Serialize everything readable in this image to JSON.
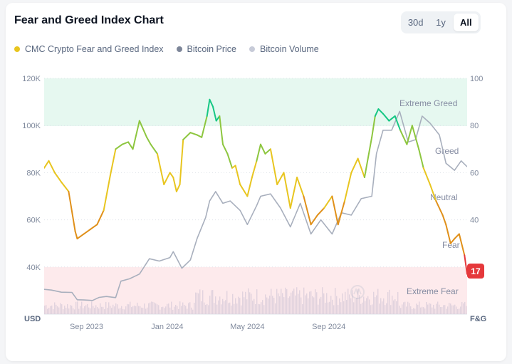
{
  "header": {
    "title": "Fear and Greed Index Chart",
    "ranges": [
      "30d",
      "1y",
      "All"
    ],
    "active_range": "All"
  },
  "legend": [
    {
      "label": "CMC Crypto Fear and Greed Index",
      "color": "#e8c51f"
    },
    {
      "label": "Bitcoin Price",
      "color": "#7d8699"
    },
    {
      "label": "Bitcoin Volume",
      "color": "#c7cbd8"
    }
  ],
  "chart_data": {
    "type": "line",
    "x_ticks": [
      "Sep 2023",
      "Jan 2024",
      "May 2024",
      "Sep 2024"
    ],
    "left_axis": {
      "label": "USD",
      "ticks": [
        "40K",
        "60K",
        "80K",
        "100K",
        "120K"
      ],
      "range": [
        20000,
        120000
      ]
    },
    "right_axis": {
      "label": "F&G",
      "ticks": [
        "40",
        "60",
        "80",
        "100"
      ],
      "range": [
        0,
        100
      ]
    },
    "zones": [
      {
        "label": "Extreme Greed",
        "from": 80,
        "to": 100,
        "color": "#e6f8f0"
      },
      {
        "label": "Greed",
        "from": 60,
        "to": 80
      },
      {
        "label": "Neutral",
        "from": 40,
        "to": 60
      },
      {
        "label": "Fear",
        "from": 20,
        "to": 40
      },
      {
        "label": "Extreme Fear",
        "from": 0,
        "to": 20,
        "color": "#fdeaec"
      }
    ],
    "current_value": "17",
    "series": [
      {
        "name": "CMC Crypto Fear and Greed Index",
        "x": [
          "2023-06-29",
          "2023-07-06",
          "2023-07-15",
          "2023-07-25",
          "2023-08-05",
          "2023-08-15",
          "2023-08-18",
          "2023-08-28",
          "2023-09-07",
          "2023-09-17",
          "2023-09-27",
          "2023-10-07",
          "2023-10-15",
          "2023-10-25",
          "2023-11-03",
          "2023-11-10",
          "2023-11-20",
          "2023-12-01",
          "2023-12-07",
          "2023-12-17",
          "2023-12-27",
          "2024-01-05",
          "2024-01-10",
          "2024-01-15",
          "2024-01-20",
          "2024-01-25",
          "2024-02-05",
          "2024-02-15",
          "2024-02-22",
          "2024-03-01",
          "2024-03-05",
          "2024-03-10",
          "2024-03-15",
          "2024-03-20",
          "2024-03-25",
          "2024-04-01",
          "2024-04-08",
          "2024-04-13",
          "2024-04-20",
          "2024-05-01",
          "2024-05-08",
          "2024-05-15",
          "2024-05-21",
          "2024-05-28",
          "2024-06-05",
          "2024-06-15",
          "2024-06-25",
          "2024-07-05",
          "2024-07-15",
          "2024-07-25",
          "2024-08-05",
          "2024-08-15",
          "2024-08-25",
          "2024-09-06",
          "2024-09-15",
          "2024-09-25",
          "2024-10-05",
          "2024-10-15",
          "2024-10-25",
          "2024-11-05",
          "2024-11-10",
          "2024-11-15",
          "2024-11-22",
          "2024-12-01",
          "2024-12-10",
          "2024-12-18",
          "2024-12-28",
          "2025-01-05",
          "2025-01-15",
          "2025-01-22",
          "2025-02-01",
          "2025-02-10",
          "2025-02-20",
          "2025-02-25",
          "2025-03-04",
          "2025-03-10",
          "2025-03-17",
          "2025-03-25",
          "2025-03-29"
        ],
        "values": [
          62,
          65,
          60,
          56,
          52,
          35,
          32,
          34,
          36,
          38,
          44,
          59,
          70,
          72,
          73,
          70,
          82,
          75,
          72,
          68,
          55,
          60,
          58,
          52,
          55,
          74,
          77,
          76,
          75,
          84,
          91,
          88,
          82,
          84,
          72,
          68,
          62,
          63,
          55,
          50,
          58,
          65,
          72,
          68,
          70,
          55,
          60,
          45,
          58,
          50,
          38,
          42,
          45,
          50,
          38,
          48,
          60,
          66,
          58,
          75,
          84,
          87,
          85,
          82,
          84,
          78,
          72,
          80,
          70,
          62,
          55,
          48,
          42,
          38,
          30,
          32,
          34,
          25,
          17
        ]
      },
      {
        "name": "Bitcoin Price",
        "x": [
          "2023-06-29",
          "2023-07-10",
          "2023-07-25",
          "2023-08-10",
          "2023-08-18",
          "2023-08-28",
          "2023-09-10",
          "2023-09-20",
          "2023-10-01",
          "2023-10-15",
          "2023-10-23",
          "2023-11-05",
          "2023-11-20",
          "2023-12-05",
          "2023-12-20",
          "2024-01-05",
          "2024-01-10",
          "2024-01-23",
          "2024-02-05",
          "2024-02-15",
          "2024-02-28",
          "2024-03-05",
          "2024-03-14",
          "2024-03-25",
          "2024-04-05",
          "2024-04-20",
          "2024-05-01",
          "2024-05-15",
          "2024-05-21",
          "2024-06-05",
          "2024-06-20",
          "2024-07-05",
          "2024-07-20",
          "2024-08-05",
          "2024-08-20",
          "2024-09-06",
          "2024-09-20",
          "2024-10-05",
          "2024-10-20",
          "2024-11-05",
          "2024-11-12",
          "2024-11-22",
          "2024-12-05",
          "2024-12-17",
          "2024-12-30",
          "2025-01-10",
          "2025-01-20",
          "2025-02-01",
          "2025-02-15",
          "2025-02-25",
          "2025-03-10",
          "2025-03-20",
          "2025-03-29"
        ],
        "values": [
          30500,
          30200,
          29300,
          29200,
          26100,
          26000,
          25800,
          27100,
          27500,
          27000,
          34000,
          35000,
          37000,
          43500,
          42500,
          44000,
          46500,
          39500,
          43000,
          52000,
          61000,
          68000,
          72000,
          67000,
          68000,
          64000,
          58000,
          66000,
          70000,
          71000,
          65000,
          57000,
          67000,
          54000,
          60000,
          54000,
          63000,
          62000,
          69000,
          70000,
          88000,
          98000,
          98000,
          106000,
          93000,
          94000,
          104000,
          101000,
          96000,
          84000,
          81000,
          85000,
          82500
        ]
      }
    ]
  }
}
